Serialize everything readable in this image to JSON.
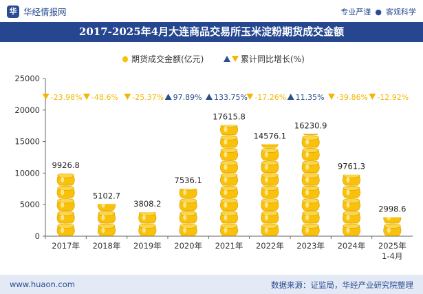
{
  "header": {
    "brand": "华经情报网",
    "tag_left": "专业严谨",
    "tag_separator": "●",
    "tag_right": "客观科学"
  },
  "footer": {
    "website": "www.huaon.com",
    "source": "数据来源：证监局，华经产业研究院整理"
  },
  "colors": {
    "bar": "#f9c10a",
    "marker": "#2b4f8e",
    "up": "#2b4f8e",
    "down": "#f2b705",
    "title_bg": "#26478f"
  },
  "chart_data": {
    "type": "bar",
    "title": "2017-2025年4月大连商品交易所玉米淀粉期货成交金额",
    "legend_position": "top",
    "legend": {
      "bar_label": "期货成交金额(亿元)",
      "line_label": "累计同比增长(%)"
    },
    "categories": [
      "2017年",
      "2018年",
      "2019年",
      "2020年",
      "2021年",
      "2022年",
      "2023年",
      "2024年",
      "2025年\n1-4月"
    ],
    "series": [
      {
        "name": "期货成交金额(亿元)",
        "values": [
          9926.8,
          5102.7,
          3808.2,
          7536.1,
          17615.8,
          14576.1,
          16230.9,
          9761.3,
          2998.6
        ],
        "labels": [
          "9926.8",
          "5102.7",
          "3808.2",
          "7536.1",
          "17615.8",
          "14576.1",
          "16230.9",
          "9761.3",
          "2998.6"
        ]
      },
      {
        "name": "累计同比增长(%)",
        "values": [
          -23.98,
          -48.6,
          -25.37,
          97.89,
          133.75,
          -17.26,
          11.35,
          -39.86,
          -12.92
        ],
        "labels": [
          "-23.98%",
          "-48.6%",
          "-25.37%",
          "97.89%",
          "133.75%",
          "-17.26%",
          "11.35%",
          "-39.86%",
          "-12.92%"
        ]
      }
    ],
    "ylim": [
      0,
      25000
    ],
    "yticks": [
      0,
      5000,
      10000,
      15000,
      20000,
      25000
    ],
    "grid": false
  }
}
